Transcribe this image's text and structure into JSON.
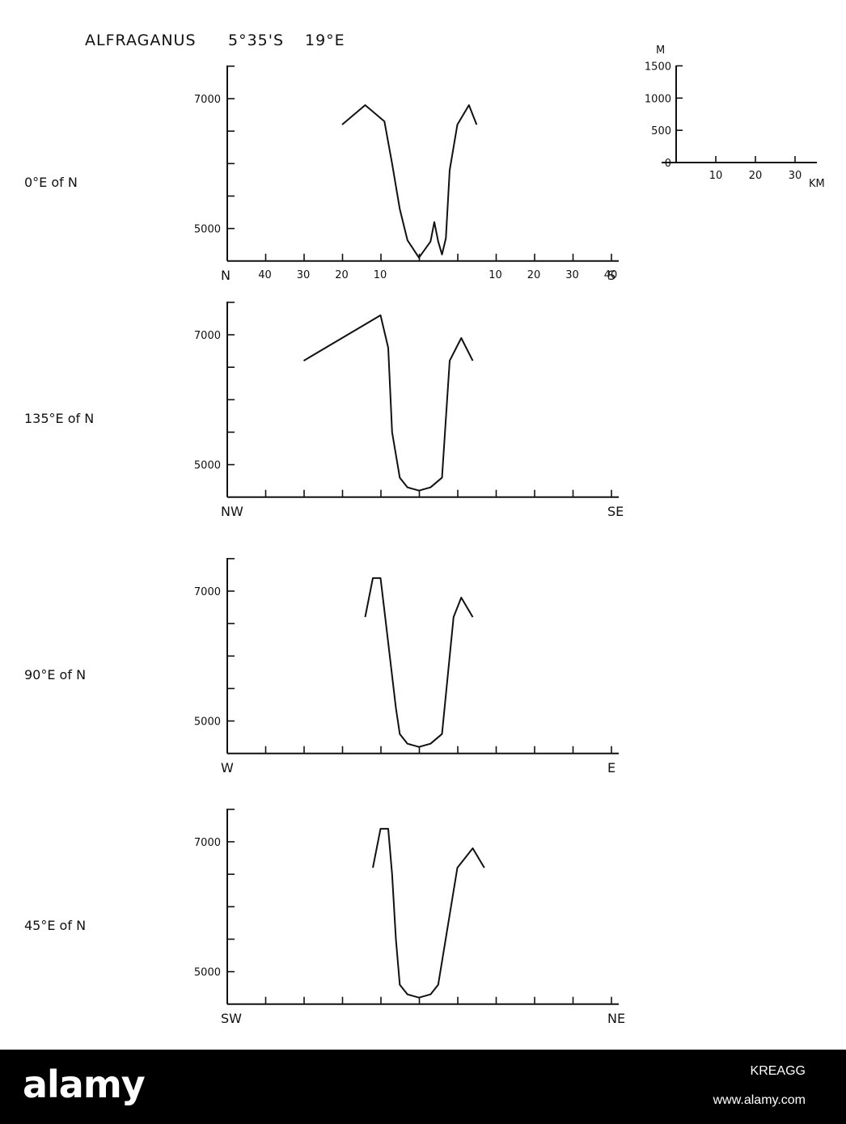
{
  "figure": {
    "title": "ALFRAGANUS",
    "latitude": "5°35'S",
    "longitude": "19°E"
  },
  "scale_bar": {
    "vertical_unit": "M",
    "vertical_ticks": [
      "1500",
      "1000",
      "500",
      "0"
    ],
    "vertical_values": [
      1500,
      1000,
      500,
      0
    ],
    "horizontal_unit": "KM",
    "horizontal_ticks": [
      "10",
      "20",
      "30"
    ],
    "horizontal_values": [
      10,
      20,
      30
    ]
  },
  "chart_data": [
    {
      "type": "line",
      "title": "",
      "direction_label": "0°E of N",
      "left_label": "N",
      "right_label": "S",
      "x_tick_labels": [
        "40",
        "30",
        "20",
        "10",
        "",
        "",
        "10",
        "20",
        "30",
        "40"
      ],
      "y_tick_labels": [
        "7000",
        "5000"
      ],
      "y_tick_values": [
        7000,
        5000
      ],
      "ylim": [
        4500,
        7500
      ],
      "xlim": [
        -52,
        52
      ],
      "x": [
        -20,
        -14,
        -9,
        -7,
        -5,
        -3,
        0,
        3,
        4,
        5,
        6,
        7,
        8,
        10,
        13,
        15
      ],
      "y": [
        6600,
        6900,
        6650,
        6000,
        5300,
        4820,
        4550,
        4800,
        5100,
        4800,
        4600,
        4850,
        5900,
        6600,
        6900,
        6600
      ]
    },
    {
      "type": "line",
      "title": "",
      "direction_label": "135°E of N",
      "left_label": "NW",
      "right_label": "SE",
      "x_tick_labels": [],
      "y_tick_labels": [
        "7000",
        "5000"
      ],
      "y_tick_values": [
        7000,
        5000
      ],
      "ylim": [
        4500,
        7500
      ],
      "xlim": [
        -52,
        52
      ],
      "x": [
        -30,
        -10,
        -8,
        -7,
        -5,
        -3,
        0,
        3,
        6,
        8,
        11,
        14
      ],
      "y": [
        6600,
        7300,
        6800,
        5500,
        4800,
        4650,
        4600,
        4650,
        4800,
        6600,
        6950,
        6600
      ]
    },
    {
      "type": "line",
      "title": "",
      "direction_label": "90°E of N",
      "left_label": "W",
      "right_label": "E",
      "x_tick_labels": [],
      "y_tick_labels": [
        "7000",
        "5000"
      ],
      "y_tick_values": [
        7000,
        5000
      ],
      "ylim": [
        4500,
        7500
      ],
      "xlim": [
        -52,
        52
      ],
      "x": [
        -14,
        -12,
        -10,
        -9,
        -6,
        -5,
        -3,
        0,
        3,
        6,
        9,
        11,
        14
      ],
      "y": [
        6600,
        7200,
        7200,
        6700,
        5200,
        4800,
        4650,
        4600,
        4650,
        4800,
        6600,
        6900,
        6600
      ]
    },
    {
      "type": "line",
      "title": "",
      "direction_label": "45°E of N",
      "left_label": "SW",
      "right_label": "NE",
      "x_tick_labels": [],
      "y_tick_labels": [
        "7000",
        "5000"
      ],
      "y_tick_values": [
        7000,
        5000
      ],
      "ylim": [
        4500,
        7500
      ],
      "xlim": [
        -52,
        52
      ],
      "x": [
        -12,
        -10,
        -8,
        -7,
        -6,
        -5,
        -3,
        0,
        3,
        5,
        10,
        14,
        17
      ],
      "y": [
        6600,
        7200,
        7200,
        6500,
        5500,
        4800,
        4650,
        4600,
        4650,
        4800,
        6600,
        6900,
        6600
      ]
    }
  ],
  "watermark": {
    "logo": "alamy",
    "image_id": "KREAGG",
    "site": "www.alamy.com"
  }
}
